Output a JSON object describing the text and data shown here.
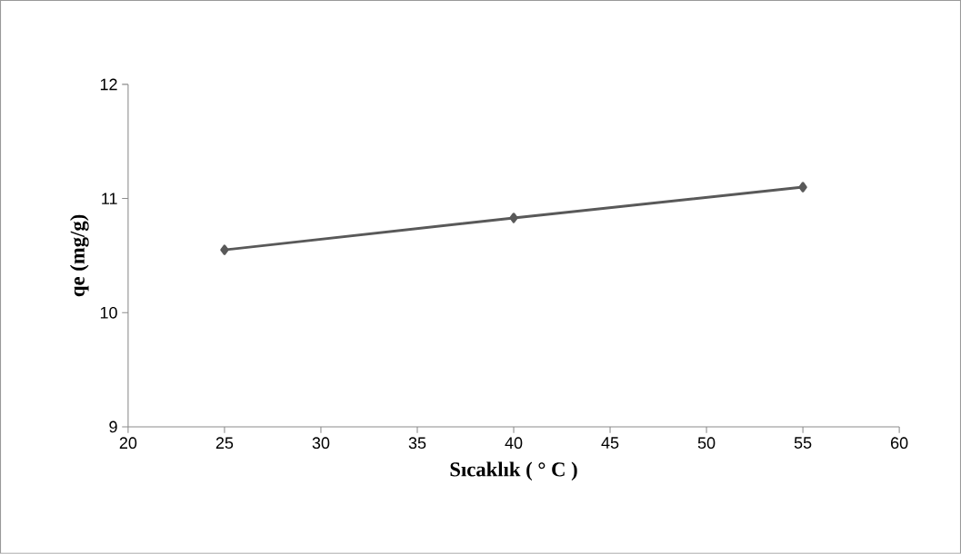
{
  "chart_data": {
    "type": "line",
    "xlabel": "Sıcaklık ( ° C )",
    "ylabel": "qe (mg/g)",
    "x": [
      25,
      40,
      55
    ],
    "series": [
      {
        "color": "#595959",
        "values": [
          10.55,
          10.83,
          11.1
        ]
      }
    ],
    "xlim": [
      20,
      60
    ],
    "xticks": [
      20,
      25,
      30,
      35,
      40,
      45,
      50,
      55,
      60
    ],
    "ylim": [
      9,
      12
    ],
    "yticks": [
      9,
      10,
      11,
      12
    ],
    "grid": false,
    "marker": "diamond",
    "line_style": "solid"
  }
}
